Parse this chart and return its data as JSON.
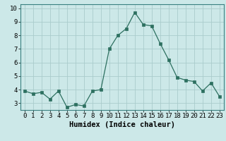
{
  "x": [
    0,
    1,
    2,
    3,
    4,
    5,
    6,
    7,
    8,
    9,
    10,
    11,
    12,
    13,
    14,
    15,
    16,
    17,
    18,
    19,
    20,
    21,
    22,
    23
  ],
  "y": [
    3.9,
    3.7,
    3.8,
    3.3,
    3.9,
    2.7,
    2.9,
    2.8,
    3.9,
    4.0,
    7.0,
    8.0,
    8.5,
    9.7,
    8.8,
    8.7,
    7.4,
    6.2,
    4.9,
    4.7,
    4.6,
    3.9,
    4.5,
    3.5
  ],
  "xlabel": "Humidex (Indice chaleur)",
  "ylim": [
    2.5,
    10.3
  ],
  "xlim": [
    -0.5,
    23.5
  ],
  "line_color": "#2d7060",
  "marker_color": "#2d7060",
  "bg_color": "#cce8e8",
  "grid_color": "#aacccc",
  "yticks": [
    3,
    4,
    5,
    6,
    7,
    8,
    9,
    10
  ],
  "xticks": [
    0,
    1,
    2,
    3,
    4,
    5,
    6,
    7,
    8,
    9,
    10,
    11,
    12,
    13,
    14,
    15,
    16,
    17,
    18,
    19,
    20,
    21,
    22,
    23
  ],
  "xlabel_fontsize": 7.5,
  "tick_fontsize": 6.5
}
